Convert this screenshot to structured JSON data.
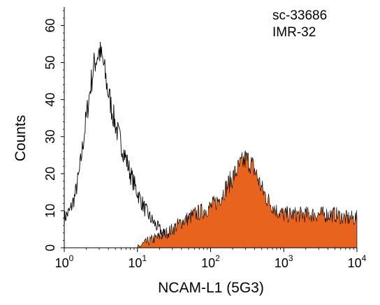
{
  "chart_data": {
    "type": "area",
    "xlabel": "NCAM-L1 (5G3)",
    "ylabel": "Counts",
    "xscale": "log",
    "xlim": [
      1,
      10000
    ],
    "ylim": [
      0,
      65
    ],
    "x_ticks": [
      {
        "base": "10",
        "exp": "0"
      },
      {
        "base": "10",
        "exp": "1"
      },
      {
        "base": "10",
        "exp": "2"
      },
      {
        "base": "10",
        "exp": "3"
      },
      {
        "base": "10",
        "exp": "4"
      }
    ],
    "y_ticks": [
      "0",
      "10",
      "20",
      "30",
      "40",
      "50",
      "60"
    ],
    "annotations": [
      "sc-33686",
      "IMR-32"
    ],
    "grid": false,
    "series": [
      {
        "style": "outline",
        "color": "#000000",
        "x": [
          1.0,
          1.2,
          1.4,
          1.6,
          1.8,
          2.0,
          2.3,
          2.6,
          3.0,
          3.4,
          3.9,
          4.5,
          5.2,
          6.0,
          7.0,
          8.0,
          9.5,
          11,
          13,
          15,
          18,
          22,
          27,
          32,
          40,
          50,
          65,
          100
        ],
        "y": [
          8,
          10,
          14,
          20,
          28,
          35,
          44,
          50,
          53,
          50,
          43,
          37,
          32,
          28,
          24,
          20,
          16,
          13,
          10,
          8,
          6,
          4,
          3,
          2,
          1.5,
          1,
          0.5,
          0
        ]
      },
      {
        "style": "filled",
        "color": "#E8631E",
        "x": [
          10,
          12,
          15,
          20,
          25,
          30,
          40,
          50,
          60,
          80,
          100,
          130,
          160,
          200,
          250,
          300,
          350,
          400,
          500,
          600,
          800,
          1000,
          1500,
          2000,
          3000,
          4000,
          5000,
          7000,
          10000
        ],
        "y": [
          0,
          1,
          2,
          3,
          4,
          5,
          7,
          8,
          9,
          10,
          11,
          13,
          16,
          19,
          22,
          24,
          23,
          21,
          16,
          13,
          10,
          9,
          9,
          9,
          9,
          9,
          9,
          8,
          8
        ]
      }
    ]
  }
}
